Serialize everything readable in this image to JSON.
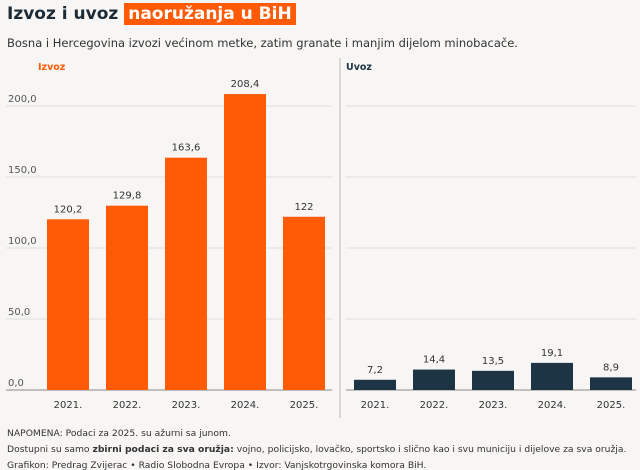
{
  "header": {
    "title_plain": "Izvoz i uvoz",
    "title_highlight": "naoružanja u BiH",
    "subtitle": "Bosna i Hercegovina izvozi većinom metke, zatim granate i manjim dijelom minobacače."
  },
  "chart_data": [
    {
      "type": "bar",
      "title": "Izvoz",
      "categories": [
        "2021.",
        "2022.",
        "2023.",
        "2024.",
        "2025."
      ],
      "values": [
        120.2,
        129.8,
        163.6,
        208.4,
        122
      ],
      "labels": [
        "120,2",
        "129,8",
        "163,6",
        "208,4",
        "122"
      ],
      "color": "#ff5a05",
      "ylim": [
        0,
        200
      ],
      "yticks": [
        "0,0",
        "50,0",
        "100,0",
        "150,0",
        "200,0"
      ],
      "grid": true
    },
    {
      "type": "bar",
      "title": "Uvoz",
      "categories": [
        "2021.",
        "2022.",
        "2023.",
        "2024.",
        "2025."
      ],
      "values": [
        7.2,
        14.4,
        13.5,
        19.1,
        8.9
      ],
      "labels": [
        "7,2",
        "14,4",
        "13,5",
        "19,1",
        "8,9"
      ],
      "color": "#1d3445",
      "ylim": [
        0,
        200
      ],
      "grid": true
    }
  ],
  "notes": {
    "line1": "NAPOMENA: Podaci za 2025. su ažurni sa junom.",
    "line2_pre": "Dostupni su samo ",
    "line2_bold": "zbirni podaci za sva oružja:",
    "line2_post": " vojno, policijsko, lovačko, sportsko i slično kao i svu municiju i dijelove za sva oružja.",
    "line3": "Grafikon: Predrag Zvijerac • Radio Slobodna Evropa • Izvor: Vanjskotrgovinska komora BiH."
  }
}
